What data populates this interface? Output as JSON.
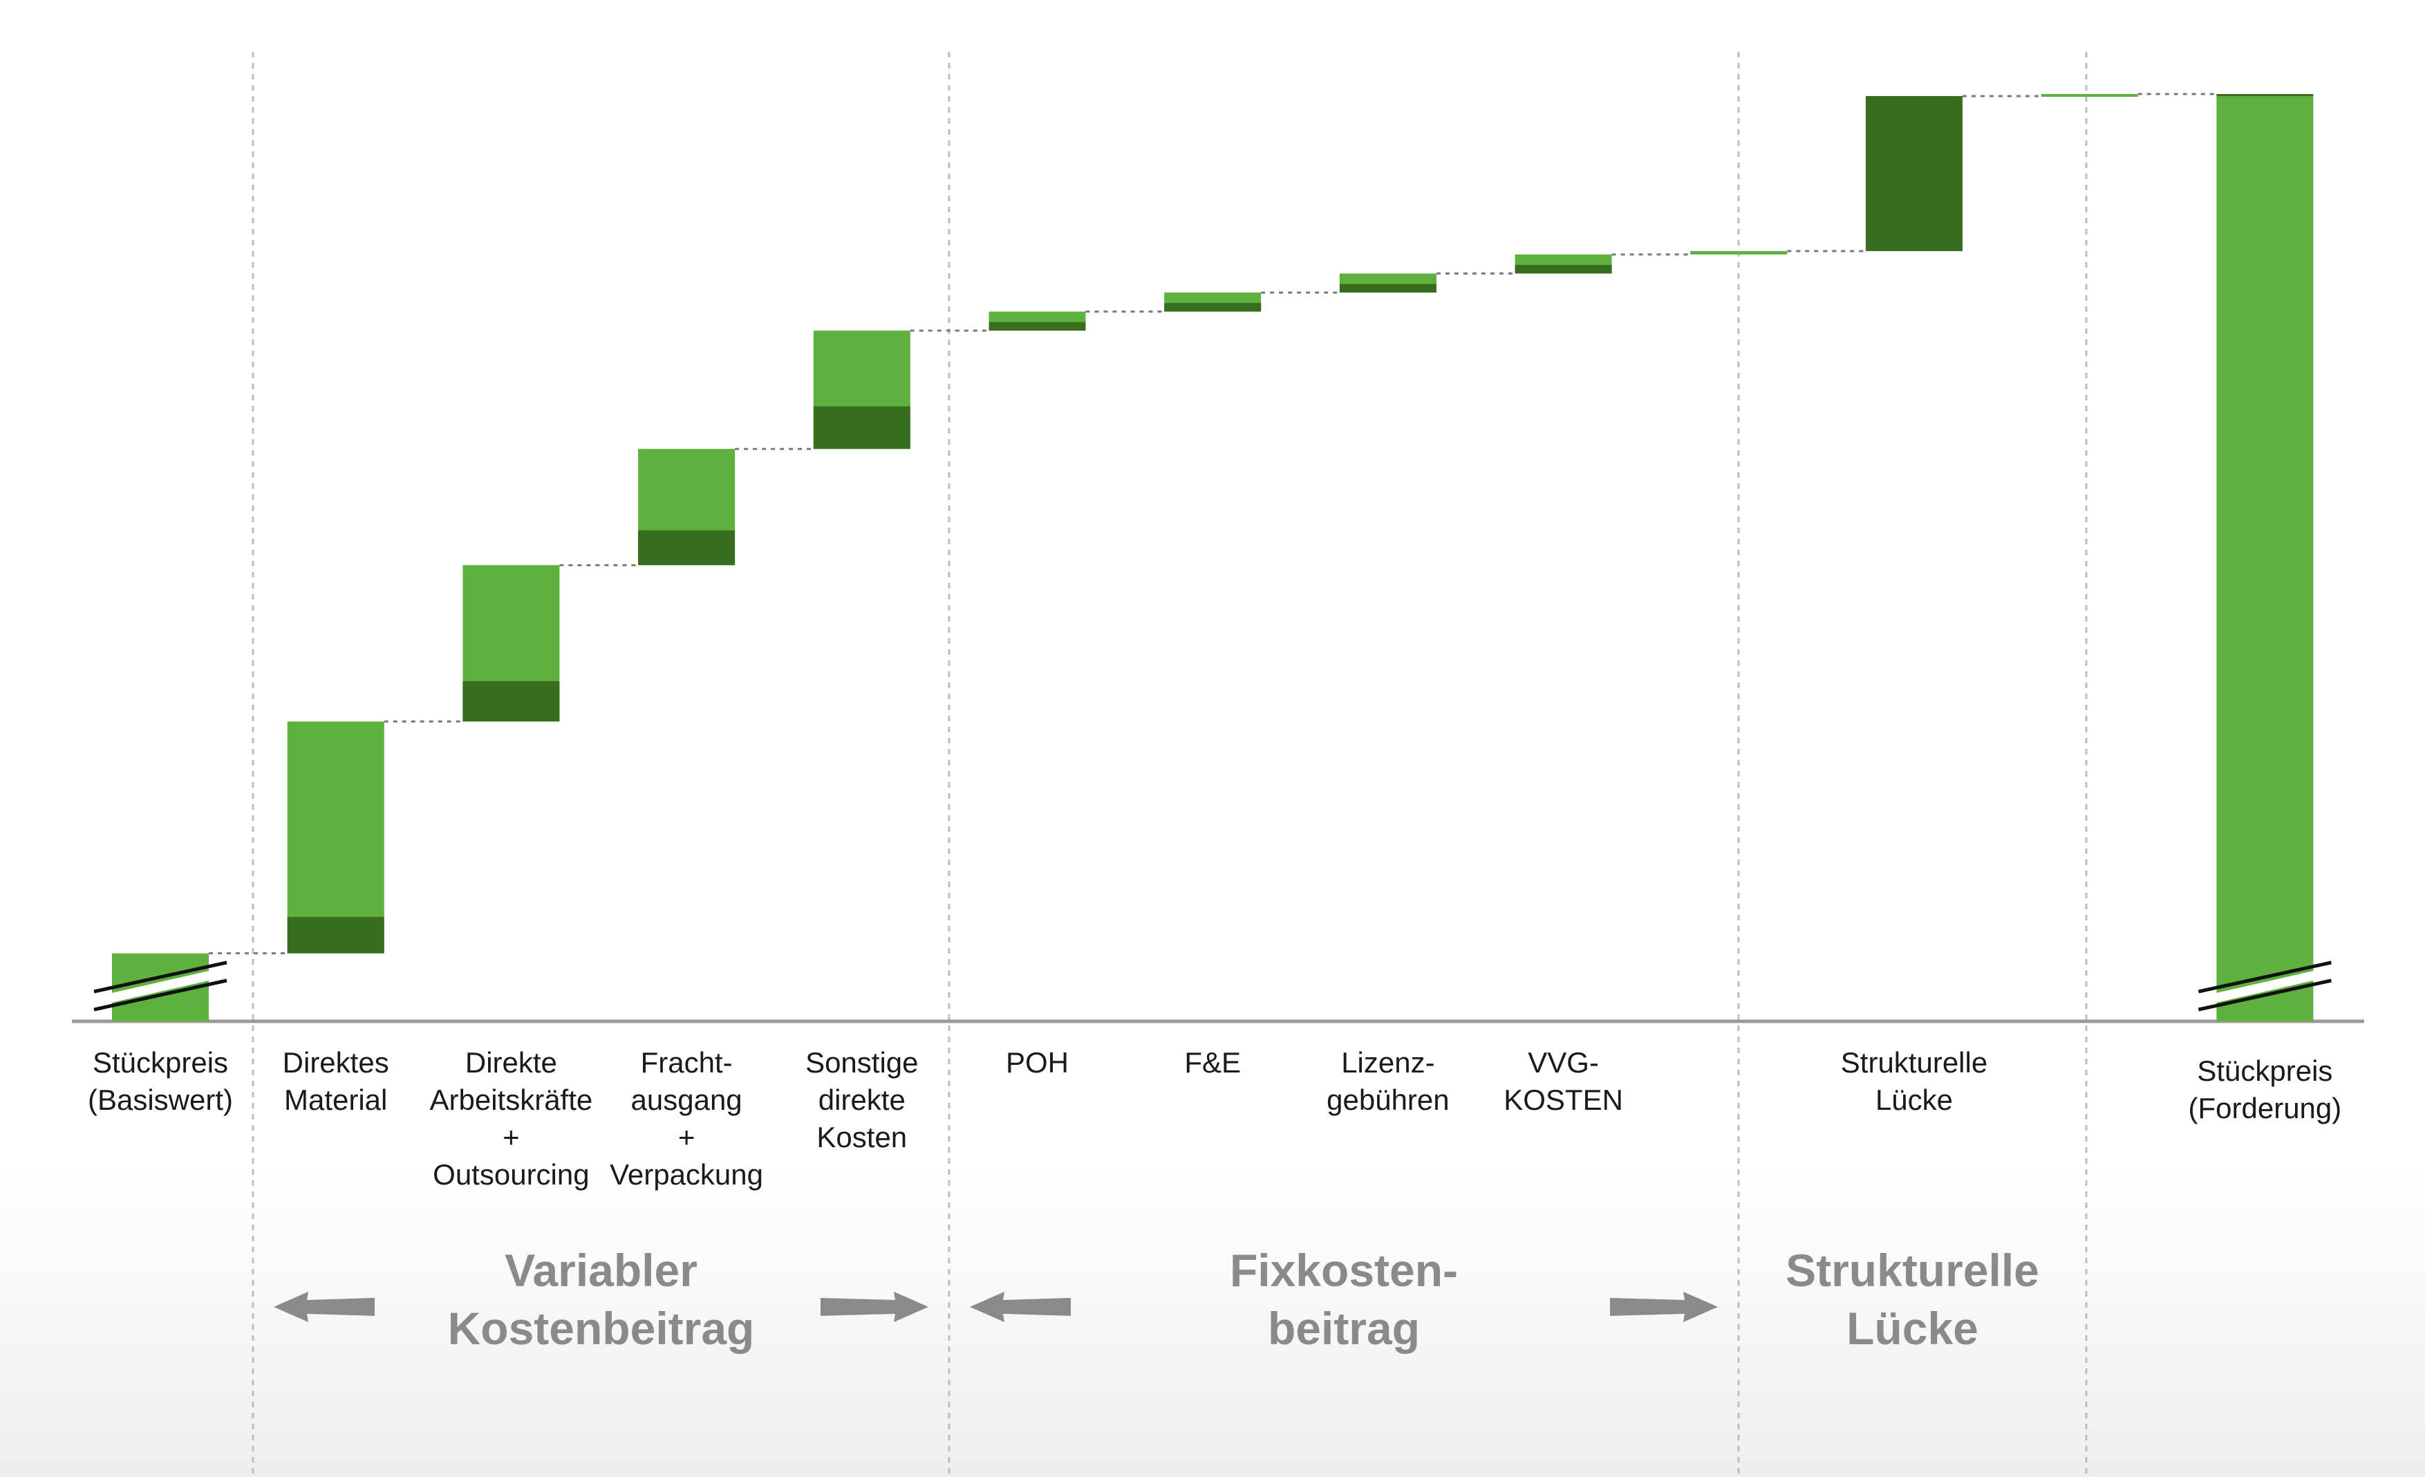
{
  "chart_data": {
    "type": "waterfall",
    "categories": [
      "Stückpreis\n(Basiswert)",
      "Direktes\nMaterial",
      "Direkte\nArbeitskräfte\n+\nOutsourcing",
      "Fracht-\nausgang\n+\nVerpackung",
      "Sonstige\ndirekte\nKosten",
      "POH",
      "F&E",
      "Lizenz-\ngebühren",
      "VVG-\nKOSTEN",
      "",
      "Strukturelle\nLücke",
      "",
      "Stückpreis\n(Forderung)"
    ],
    "bars": [
      {
        "kind": "total",
        "start": 0,
        "end": 100,
        "axis_break": true
      },
      {
        "kind": "delta",
        "start": 100,
        "end": 441,
        "dark_share": 0.157
      },
      {
        "kind": "delta",
        "start": 441,
        "end": 671,
        "dark_share": 0.258
      },
      {
        "kind": "delta",
        "start": 671,
        "end": 842,
        "dark_share": 0.3
      },
      {
        "kind": "delta",
        "start": 842,
        "end": 1016,
        "dark_share": 0.36
      },
      {
        "kind": "delta",
        "start": 1016,
        "end": 1044,
        "dark_share": 0.45
      },
      {
        "kind": "delta",
        "start": 1044,
        "end": 1072,
        "dark_share": 0.45
      },
      {
        "kind": "delta",
        "start": 1072,
        "end": 1100,
        "dark_share": 0.45
      },
      {
        "kind": "delta",
        "start": 1100,
        "end": 1128,
        "dark_share": 0.45
      },
      {
        "kind": "delta",
        "start": 1128,
        "end": 1133,
        "dark_share": 0
      },
      {
        "kind": "delta",
        "start": 1133,
        "end": 1361,
        "dark_share": 1.0
      },
      {
        "kind": "delta",
        "start": 1361,
        "end": 1364,
        "dark_share": 0
      },
      {
        "kind": "total",
        "start": 0,
        "end": 1364,
        "axis_break": true
      }
    ],
    "groups": [
      {
        "label": "Variabler\nKostenbeitrag",
        "from": 1,
        "to": 4,
        "arrows": true
      },
      {
        "label": "Fixkosten-\nbeitrag",
        "from": 5,
        "to": 8,
        "arrows": true
      },
      {
        "label": "Strukturelle\nLücke",
        "from": 10,
        "to": 10,
        "arrows": false
      }
    ],
    "colors": {
      "light": "#5eb13c",
      "dark": "#386c1f",
      "axis": "#999999",
      "connector": "#7a7a7a",
      "separator": "#bdbdbd",
      "group_text": "#8a8a8a",
      "arrow": "#8a8a8a"
    },
    "grid": false,
    "legend": "none"
  }
}
